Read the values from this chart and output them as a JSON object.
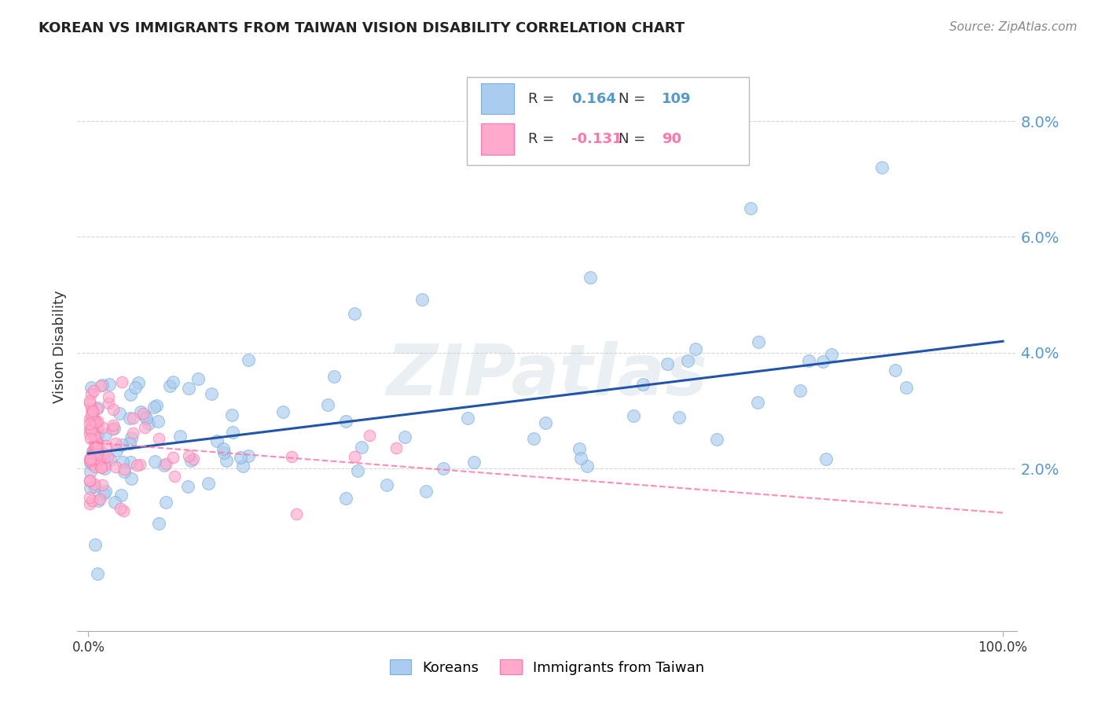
{
  "title": "KOREAN VS IMMIGRANTS FROM TAIWAN VISION DISABILITY CORRELATION CHART",
  "source": "Source: ZipAtlas.com",
  "ylabel": "Vision Disability",
  "legend_koreans": "Koreans",
  "legend_taiwan": "Immigrants from Taiwan",
  "r_korean": 0.164,
  "n_korean": 109,
  "r_taiwan": -0.131,
  "n_taiwan": 90,
  "blue_color": "#7aadde",
  "blue_color_fill": "#aaccee",
  "pink_color": "#ff77aa",
  "pink_color_fill": "#ffaacc",
  "blue_line_color": "#2255aa",
  "pink_line_color": "#ff77aa",
  "background": "#ffffff",
  "watermark": "ZIPatlas",
  "grid_color": "#cccccc",
  "title_color": "#222222",
  "source_color": "#888888",
  "ytick_color": "#5599cc",
  "xtick_color": "#333333"
}
